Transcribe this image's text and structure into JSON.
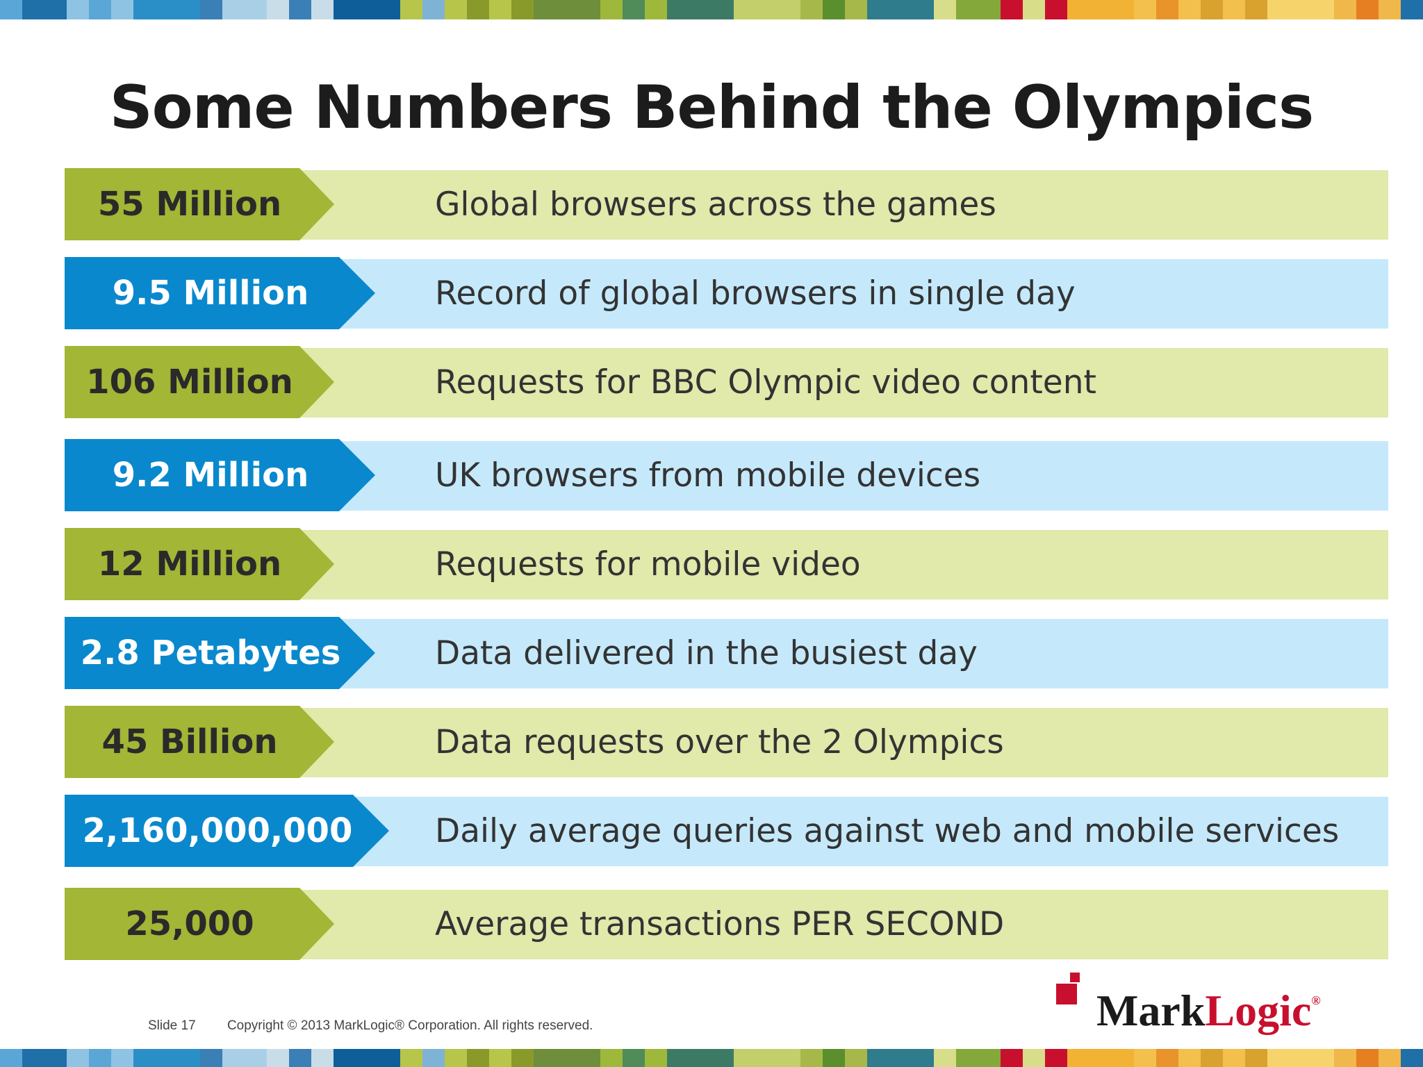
{
  "colors": {
    "green_tag": "#a3b635",
    "green_band": "#e1e9ab",
    "blue_tag": "#0a88cd",
    "blue_band": "#c5e9fb",
    "brand_red": "#c8102e"
  },
  "title": "Some Numbers Behind the Olympics",
  "rows": [
    {
      "value": "55 Million",
      "desc": "Global browsers across the games",
      "style": "green"
    },
    {
      "value": "9.5 Million",
      "desc": "Record of global browsers in single day",
      "style": "blue"
    },
    {
      "value": "106 Million",
      "desc": "Requests for BBC Olympic video content",
      "style": "green"
    },
    {
      "value": "9.2 Million",
      "desc": "UK browsers from mobile devices",
      "style": "blue"
    },
    {
      "value": "12 Million",
      "desc": "Requests for mobile video",
      "style": "green"
    },
    {
      "value": "2.8 Petabytes",
      "desc": "Data delivered in the busiest day",
      "style": "blue"
    },
    {
      "value": "45 Billion",
      "desc": "Data requests over the 2 Olympics",
      "style": "green"
    },
    {
      "value": "2,160,000,000",
      "desc": "Daily average queries against web and mobile services",
      "style": "blue"
    },
    {
      "value": "25,000",
      "desc": "Average transactions PER SECOND",
      "style": "green"
    }
  ],
  "footer": {
    "slide": "Slide 17",
    "copyright": "Copyright © 2013 MarkLogic® Corporation. All rights reserved."
  },
  "logo": {
    "word_dark": "Mark",
    "word_red": "Logic",
    "reg": "®"
  }
}
